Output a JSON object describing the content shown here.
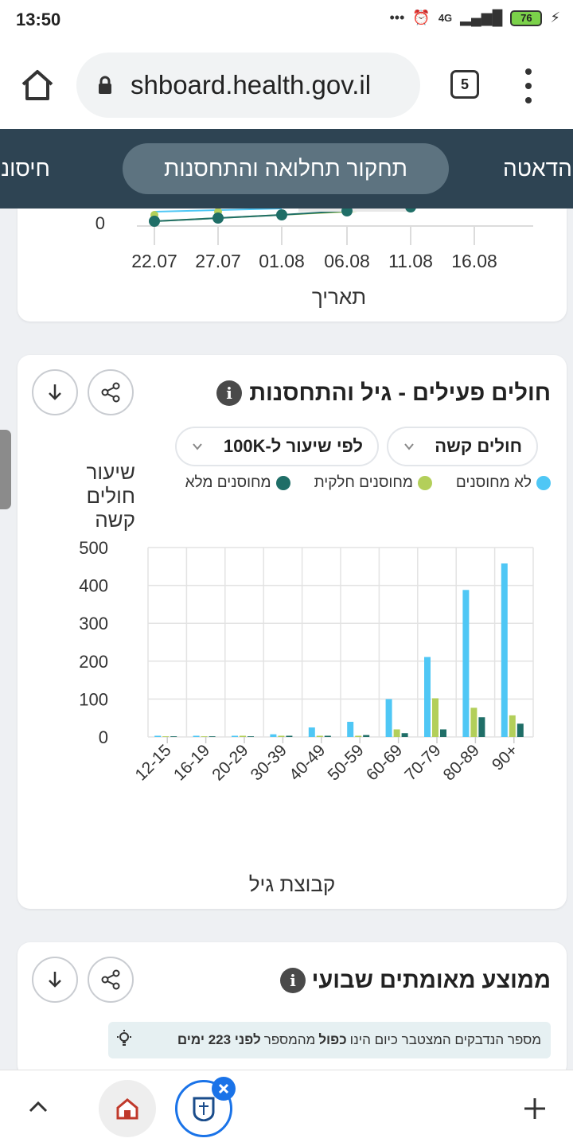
{
  "status_bar": {
    "time": "13:50",
    "battery": "76",
    "network": "4G"
  },
  "browser": {
    "url": "shboard.health.gov.il",
    "tab_count": "5"
  },
  "site_nav": {
    "left_item": "חיסוני",
    "active_item": "תחקור תחלואה והתחסנות",
    "right_item": "הדאטה"
  },
  "top_card": {
    "y_tick": "0",
    "x_ticks": [
      "22.07",
      "27.07",
      "01.08",
      "06.08",
      "11.08",
      "16.08"
    ],
    "x_label": "תאריך"
  },
  "age_card": {
    "title": "חולים פעילים - גיל והתחסנות",
    "dropdown_metric": "חולים קשה",
    "dropdown_rate": "לפי שיעור ל-100K",
    "legend": {
      "unvaccinated": "לא מחוסנים",
      "partial": "מחוסנים חלקית",
      "full": "מחוסנים מלא"
    },
    "y_label": "שיעור חולים קשה",
    "x_label": "קבוצת גיל"
  },
  "chart_data": {
    "type": "bar",
    "categories": [
      "12-15",
      "16-19",
      "20-29",
      "30-39",
      "40-49",
      "50-59",
      "60-69",
      "70-79",
      "80-89",
      "90+"
    ],
    "series": [
      {
        "name": "לא מחוסנים",
        "color": "#4fc7f5",
        "values": [
          1,
          2,
          3,
          7,
          25,
          40,
          100,
          211,
          388,
          458
        ]
      },
      {
        "name": "מחוסנים חלקית",
        "color": "#b3cf5a",
        "values": [
          0,
          0,
          3,
          1,
          2,
          2,
          20,
          102,
          77,
          57
        ]
      },
      {
        "name": "מחוסנים מלא",
        "color": "#1f6e67",
        "values": [
          0,
          0,
          0,
          1,
          1,
          5,
          10,
          20,
          52,
          35
        ]
      }
    ],
    "xlabel": "קבוצת גיל",
    "ylabel": "שיעור חולים קשה",
    "ylim": [
      0,
      500
    ],
    "yticks": [
      0,
      100,
      200,
      300,
      400,
      500
    ],
    "grid": true
  },
  "bottom_card": {
    "title": "ממוצע מאומתים שבועי",
    "tip_text": "מספר הנדבקים המצטבר כיום הינו",
    "tip_bold1": "כפול",
    "tip_mid": "מהמספר",
    "tip_bold2": "לפני 223 ימים"
  }
}
